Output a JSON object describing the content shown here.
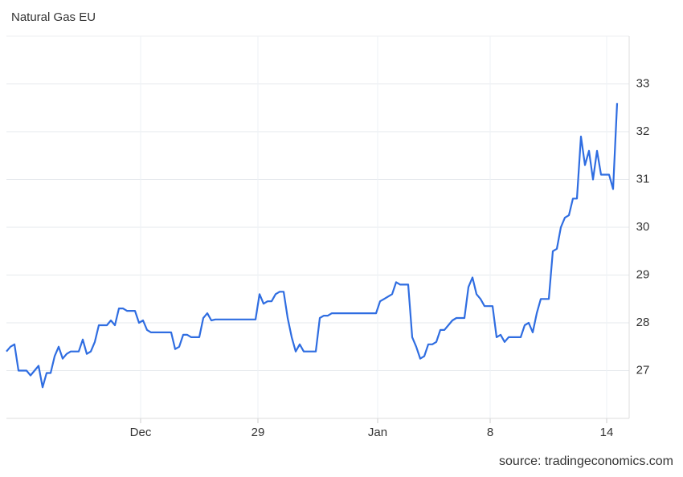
{
  "chart_data": {
    "type": "line",
    "title": "Natural Gas EU",
    "source": "source: tradingeconomics.com",
    "x": [
      0,
      1,
      2,
      3,
      4,
      5,
      6,
      7,
      8,
      9,
      10,
      11,
      12,
      13,
      14,
      15,
      16,
      17,
      18,
      19,
      20,
      21,
      22,
      23,
      24,
      25,
      26,
      27,
      28,
      29,
      30,
      31,
      32,
      33,
      34,
      35,
      36,
      37,
      38,
      39,
      40,
      41,
      42,
      43,
      44,
      45,
      46,
      47,
      48,
      49,
      50,
      51,
      52,
      53,
      54,
      55,
      56,
      57,
      58,
      59,
      60,
      61,
      62,
      63,
      64,
      65,
      66,
      67,
      68,
      69,
      70,
      71,
      72,
      73,
      74,
      75,
      76,
      77,
      78,
      79,
      80,
      81,
      82,
      83,
      84,
      85,
      86,
      87,
      88,
      89,
      90,
      91,
      92,
      93,
      94,
      95,
      96,
      97,
      98,
      99,
      100,
      101,
      102,
      103,
      104,
      105,
      106,
      107,
      108,
      109,
      110,
      111,
      112,
      113,
      114,
      115,
      116,
      117,
      118,
      119,
      120,
      121,
      122,
      123,
      124,
      125,
      126,
      127,
      128,
      129,
      130,
      131,
      132,
      133,
      134,
      135,
      136,
      137,
      138,
      139,
      140,
      141,
      142,
      143,
      144,
      145,
      146,
      147,
      148,
      149,
      150,
      151,
      152
    ],
    "series": [
      {
        "name": "Natural Gas EU",
        "color": "#2f6de1",
        "values": [
          27.4,
          27.5,
          27.55,
          27.0,
          27.0,
          27.0,
          26.9,
          27.0,
          27.1,
          26.65,
          26.95,
          26.95,
          27.3,
          27.5,
          27.25,
          27.35,
          27.4,
          27.4,
          27.4,
          27.65,
          27.35,
          27.4,
          27.6,
          27.95,
          27.95,
          27.95,
          28.05,
          27.95,
          28.3,
          28.3,
          28.25,
          28.25,
          28.25,
          28.0,
          28.05,
          27.85,
          27.8,
          27.8,
          27.8,
          27.8,
          27.8,
          27.8,
          27.45,
          27.5,
          27.75,
          27.75,
          27.7,
          27.7,
          27.7,
          28.1,
          28.2,
          28.05,
          28.07,
          28.07,
          28.07,
          28.07,
          28.07,
          28.07,
          28.07,
          28.07,
          28.07,
          28.07,
          28.07,
          28.6,
          28.4,
          28.45,
          28.45,
          28.6,
          28.65,
          28.65,
          28.1,
          27.7,
          27.4,
          27.55,
          27.4,
          27.4,
          27.4,
          27.4,
          28.1,
          28.15,
          28.15,
          28.2,
          28.2,
          28.2,
          28.2,
          28.2,
          28.2,
          28.2,
          28.2,
          28.2,
          28.2,
          28.2,
          28.2,
          28.45,
          28.5,
          28.55,
          28.6,
          28.85,
          28.8,
          28.8,
          28.8,
          27.7,
          27.5,
          27.25,
          27.3,
          27.55,
          27.55,
          27.6,
          27.85,
          27.85,
          27.95,
          28.05,
          28.1,
          28.1,
          28.1,
          28.75,
          28.95,
          28.6,
          28.5,
          28.35,
          28.35,
          28.35,
          27.7,
          27.75,
          27.6,
          27.7,
          27.7,
          27.7,
          27.7,
          27.95,
          28.0,
          27.8,
          28.2,
          28.5,
          28.5,
          28.5,
          29.5,
          29.55,
          30.0,
          30.2,
          30.25,
          30.6,
          30.6,
          31.9,
          31.3,
          31.6,
          31.0,
          31.6,
          31.1,
          31.1,
          31.1,
          30.8,
          32.6
        ]
      }
    ],
    "xlim": [
      0,
      155
    ],
    "xticks": [
      {
        "value": 33.4,
        "label": "Dec"
      },
      {
        "value": 62.6,
        "label": "29"
      },
      {
        "value": 92.4,
        "label": "Jan"
      },
      {
        "value": 120.4,
        "label": "8"
      },
      {
        "value": 149.4,
        "label": "14"
      }
    ],
    "ylim": [
      26,
      34
    ],
    "yticks": [
      27,
      28,
      29,
      30,
      31,
      32,
      33
    ],
    "grid": true
  }
}
